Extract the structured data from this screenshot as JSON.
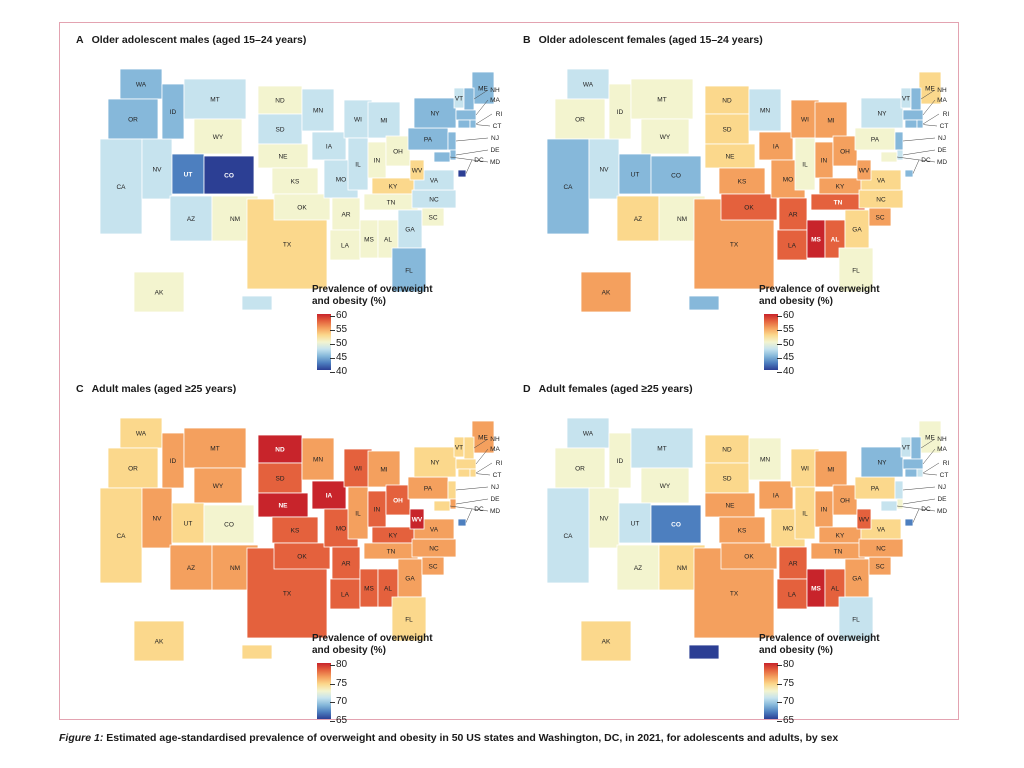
{
  "figure": {
    "caption_label": "Figure 1:",
    "caption_text": "Estimated age-standardised prevalence of overweight and obesity in 50 US states and Washington, DC, in 2021, for adolescents and adults, by sex"
  },
  "legend_title_line1": "Prevalence of overweight",
  "legend_title_line2": "and obesity (%)",
  "palette": [
    "#2c3f94",
    "#4d7fbf",
    "#86b8da",
    "#c6e3ee",
    "#f3f4cf",
    "#fbd88c",
    "#f4a05e",
    "#e4613d",
    "#c8242b"
  ],
  "panels": [
    {
      "letter": "A",
      "title": "Older adolescent males (aged 15–24 years)",
      "scale_min": 40,
      "scale_max": 62,
      "ticks": [
        "60",
        "55",
        "50",
        "45",
        "40"
      ],
      "states": {
        "WA": 47,
        "OR": 47,
        "CA": 48,
        "NV": 49,
        "ID": 45,
        "MT": 48,
        "WY": 50,
        "UT": 43,
        "CO": 41,
        "AZ": 49,
        "NM": 52,
        "TX": 53,
        "ND": 52,
        "SD": 48,
        "NE": 51,
        "KS": 52,
        "OK": 52,
        "MN": 48,
        "IA": 49,
        "MO": 49,
        "AR": 50,
        "LA": 51,
        "WI": 48,
        "IL": 49,
        "MS": 52,
        "AL": 52,
        "MI": 48,
        "IN": 50,
        "OH": 50,
        "KY": 53,
        "TN": 51,
        "GA": 48,
        "FL": 47,
        "SC": 51,
        "NC": 49,
        "VA": 48,
        "WV": 54,
        "PA": 47,
        "NY": 47,
        "ME": 46,
        "VT": 48,
        "NH": 46,
        "MA": 46,
        "CT": 46,
        "RI": 46,
        "NJ": 46,
        "DE": 47,
        "MD": 47,
        "DC": 42,
        "AK": 51,
        "HI": 49
      }
    },
    {
      "letter": "B",
      "title": "Older adolescent females (aged 15–24 years)",
      "scale_min": 40,
      "scale_max": 62,
      "ticks": [
        "60",
        "55",
        "50",
        "45",
        "40"
      ],
      "states": {
        "WA": 48,
        "OR": 50,
        "CA": 47,
        "NV": 49,
        "ID": 51,
        "MT": 51,
        "WY": 51,
        "UT": 45,
        "CO": 45,
        "AZ": 53,
        "NM": 52,
        "TX": 56,
        "ND": 53,
        "SD": 53,
        "NE": 53,
        "KS": 56,
        "OK": 58,
        "MN": 49,
        "IA": 55,
        "MO": 55,
        "AR": 58,
        "LA": 58,
        "WI": 55,
        "IL": 51,
        "MS": 62,
        "AL": 59,
        "MI": 55,
        "IN": 55,
        "OH": 55,
        "KY": 57,
        "TN": 59,
        "GA": 54,
        "FL": 51,
        "SC": 56,
        "NC": 53,
        "VA": 53,
        "WV": 56,
        "PA": 50,
        "NY": 48,
        "ME": 53,
        "VT": 48,
        "NH": 47,
        "MA": 46,
        "CT": 46,
        "RI": 46,
        "NJ": 47,
        "DE": 49,
        "MD": 50,
        "DC": 47,
        "AK": 56,
        "HI": 47
      }
    },
    {
      "letter": "C",
      "title": "Adult males (aged ≥25 years)",
      "scale_min": 64,
      "scale_max": 81,
      "ticks": [
        "80",
        "75",
        "70",
        "65"
      ],
      "states": {
        "WA": 74,
        "OR": 74,
        "CA": 73.5,
        "NV": 76,
        "ID": 77,
        "MT": 76,
        "WY": 77,
        "UT": 75,
        "CO": 73,
        "AZ": 76,
        "NM": 76,
        "TX": 78,
        "ND": 80,
        "SD": 78,
        "NE": 80,
        "KS": 78,
        "OK": 78,
        "MN": 77,
        "IA": 80,
        "MO": 78,
        "AR": 78,
        "LA": 78,
        "WI": 78,
        "IL": 77,
        "MS": 78,
        "AL": 78,
        "MI": 77,
        "IN": 78,
        "OH": 79,
        "KY": 78,
        "TN": 77,
        "GA": 76,
        "FL": 75,
        "SC": 76,
        "NC": 76,
        "VA": 76,
        "WV": 80,
        "PA": 77,
        "NY": 74,
        "ME": 76,
        "VT": 74,
        "NH": 75,
        "MA": 74,
        "CT": 74,
        "RI": 75,
        "NJ": 75,
        "DE": 76,
        "MD": 75,
        "DC": 66,
        "AK": 75,
        "HI": 74
      }
    },
    {
      "letter": "D",
      "title": "Adult females (aged ≥25 years)",
      "scale_min": 64,
      "scale_max": 81,
      "ticks": [
        "80",
        "75",
        "70",
        "65"
      ],
      "states": {
        "WA": 71,
        "OR": 72,
        "CA": 71,
        "NV": 72,
        "ID": 73,
        "MT": 71,
        "WY": 72,
        "UT": 71,
        "CO": 66,
        "AZ": 73,
        "NM": 75,
        "TX": 76,
        "ND": 75,
        "SD": 75,
        "NE": 76,
        "KS": 76,
        "OK": 77,
        "MN": 72,
        "IA": 76,
        "MO": 75,
        "AR": 78,
        "LA": 78,
        "WI": 74,
        "IL": 74,
        "MS": 80,
        "AL": 78,
        "MI": 76,
        "IN": 76,
        "OH": 76,
        "KY": 76,
        "TN": 77,
        "GA": 76,
        "FL": 71,
        "SC": 77,
        "NC": 76,
        "VA": 75,
        "WV": 78,
        "PA": 74,
        "NY": 69,
        "ME": 72,
        "VT": 70,
        "NH": 69,
        "MA": 68,
        "CT": 69,
        "RI": 70,
        "NJ": 70,
        "DE": 72,
        "MD": 71,
        "DC": 67,
        "AK": 74,
        "HI": 64
      }
    }
  ]
}
